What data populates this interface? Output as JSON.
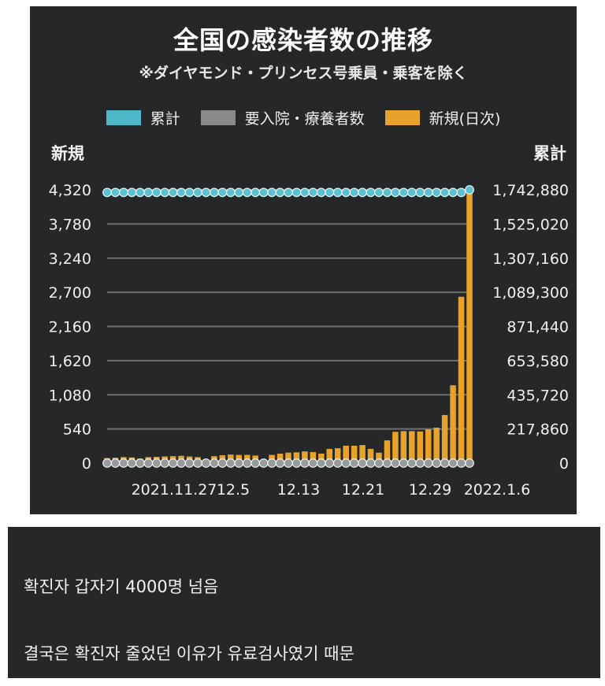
{
  "chart": {
    "title": "全国の感染者数の推移",
    "subtitle": "※ダイヤモンド・プリンセス号乗員・乗客を除く",
    "legend": [
      {
        "label": "累計",
        "color": "#4fb8c8"
      },
      {
        "label": "要入院・療養者数",
        "color": "#8a8a8a"
      },
      {
        "label": "新規(日次)",
        "color": "#e8a22c"
      }
    ],
    "left_axis_title": "新規",
    "right_axis_title": "累計"
  },
  "chart_data": {
    "type": "bar",
    "title": "全国の感染者数の推移",
    "subtitle": "※ダイヤモンド・プリンセス号乗員・乗客を除く",
    "ylabel_left": "新規",
    "ylabel_right": "累計",
    "ylim_left": [
      0,
      4320
    ],
    "ylim_right": [
      0,
      1742880
    ],
    "left_ticks": [
      "0",
      "540",
      "1,080",
      "1,620",
      "2,160",
      "2,700",
      "3,240",
      "3,780",
      "4,320"
    ],
    "right_ticks": [
      "0",
      "217,860",
      "435,720",
      "653,580",
      "871,440",
      "1,089,300",
      "1,307,160",
      "1,525,020",
      "1,742,880"
    ],
    "x_tick_labels": [
      "2021.11.27",
      "12.5",
      "12.13",
      "12.21",
      "12.29",
      "2022.1.6"
    ],
    "grid": true,
    "legend_position": "top",
    "series": [
      {
        "name": "新規(日次)",
        "type": "bar",
        "axis": "left",
        "color": "#e8a22c",
        "values": [
          80,
          85,
          95,
          90,
          70,
          95,
          100,
          105,
          110,
          115,
          105,
          95,
          60,
          110,
          125,
          135,
          130,
          130,
          120,
          50,
          130,
          150,
          165,
          170,
          185,
          175,
          150,
          225,
          235,
          275,
          275,
          285,
          225,
          165,
          360,
          495,
          505,
          505,
          500,
          535,
          560,
          760,
          1230,
          2630,
          4320
        ]
      },
      {
        "name": "累計",
        "type": "line",
        "axis": "right",
        "color": "#4fb8c8",
        "values": [
          1726000,
          1726000,
          1726000,
          1726000,
          1726000,
          1726000,
          1726000,
          1726000,
          1726000,
          1726000,
          1726000,
          1726000,
          1726000,
          1726000,
          1726000,
          1726000,
          1726000,
          1726000,
          1726000,
          1726000,
          1726000,
          1726000,
          1726000,
          1726000,
          1726000,
          1726000,
          1726000,
          1726000,
          1726000,
          1726000,
          1726000,
          1726000,
          1726000,
          1726000,
          1726000,
          1726000,
          1726000,
          1726000,
          1726000,
          1726000,
          1726000,
          1726000,
          1726000,
          1726000,
          1742880
        ]
      },
      {
        "name": "要入院・療養者数",
        "type": "line",
        "axis": "right",
        "color": "#8a8a8a",
        "values": [
          0,
          0,
          0,
          0,
          0,
          0,
          0,
          0,
          0,
          0,
          0,
          0,
          0,
          0,
          0,
          0,
          0,
          0,
          0,
          0,
          0,
          0,
          0,
          0,
          0,
          0,
          0,
          0,
          0,
          0,
          0,
          0,
          0,
          0,
          0,
          0,
          0,
          0,
          0,
          0,
          0,
          0,
          0,
          0,
          0
        ]
      }
    ]
  },
  "comments": {
    "line1": "확진자 갑자기 4000명 넘음",
    "line2": "결국은 확진자 줄었던 이유가 유료검사였기 때문"
  }
}
